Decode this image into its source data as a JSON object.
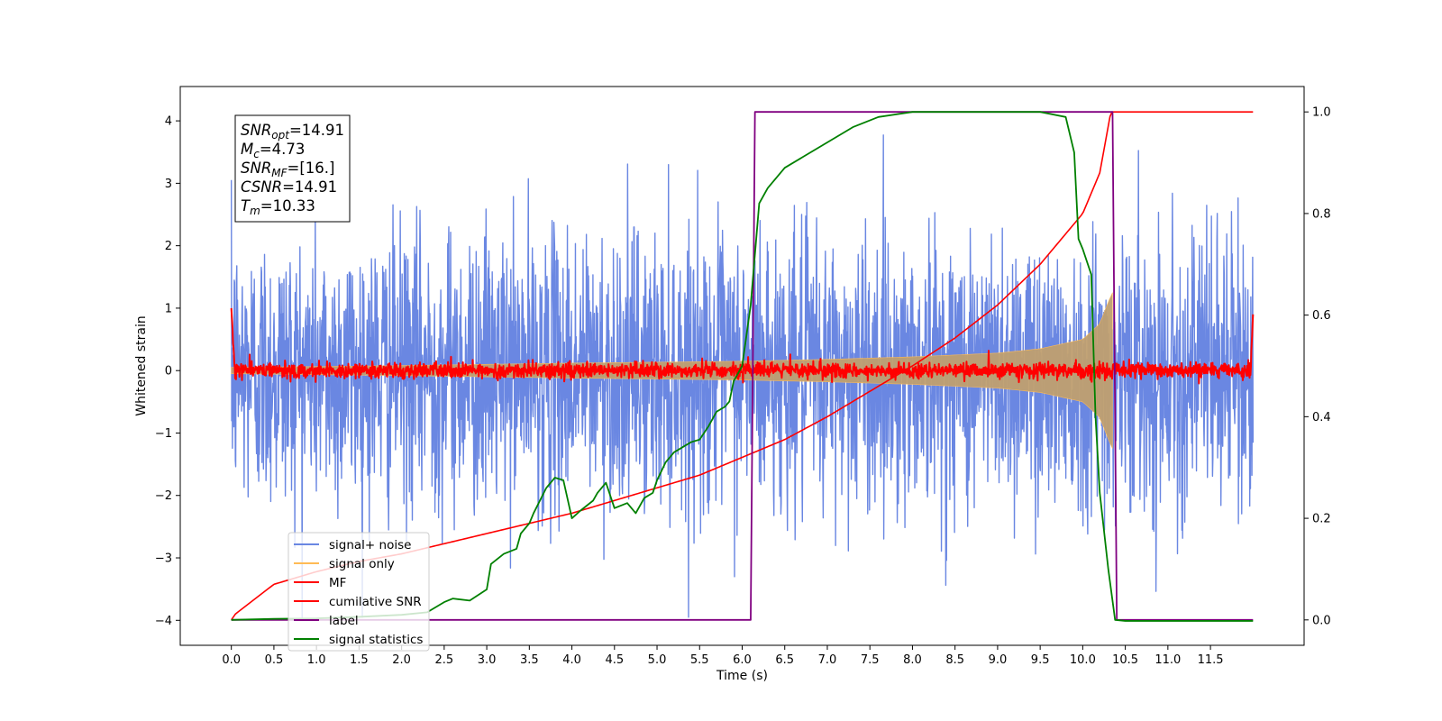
{
  "chart_data": {
    "type": "line",
    "xlabel": "Time (s)",
    "ylabel": "Whitened strain",
    "xlim": [
      -0.6,
      12.6
    ],
    "ylim_left": [
      -4.4,
      4.55
    ],
    "ylim_right": [
      -0.05,
      1.05
    ],
    "x_ticks": [
      0.0,
      0.5,
      1.0,
      1.5,
      2.0,
      2.5,
      3.0,
      3.5,
      4.0,
      4.5,
      5.0,
      5.5,
      6.0,
      6.5,
      7.0,
      7.5,
      8.0,
      8.5,
      9.0,
      9.5,
      10.0,
      10.5,
      11.0,
      11.5
    ],
    "x_tick_labels": [
      "0.0",
      "0.5",
      "1.0",
      "1.5",
      "2.0",
      "2.5",
      "3.0",
      "3.5",
      "4.0",
      "4.5",
      "5.0",
      "5.5",
      "6.0",
      "6.5",
      "7.0",
      "7.5",
      "8.0",
      "8.5",
      "9.0",
      "9.5",
      "10.0",
      "10.5",
      "11.0",
      "11.5"
    ],
    "y_left_ticks": [
      -4,
      -3,
      -2,
      -1,
      0,
      1,
      2,
      3,
      4
    ],
    "y_left_tick_labels": [
      "−4",
      "−3",
      "−2",
      "−1",
      "0",
      "1",
      "2",
      "3",
      "4"
    ],
    "y_right_ticks": [
      0.0,
      0.2,
      0.4,
      0.6,
      0.8,
      1.0
    ],
    "y_right_tick_labels": [
      "0.0",
      "0.2",
      "0.4",
      "0.6",
      "0.8",
      "1.0"
    ],
    "legend_position": "lower-left",
    "series": [
      {
        "name": "signal+ noise",
        "color": "#6a87e2",
        "axis": "left",
        "x_range": [
          0,
          12
        ],
        "noise_std": 1.1
      },
      {
        "name": "signal only",
        "color": "#ffbb55",
        "fill_color": "#c0a070",
        "axis": "left",
        "x_range": [
          0,
          10.35
        ],
        "envelope": {
          "x": [
            0,
            2,
            4,
            6,
            7,
            8,
            9,
            9.5,
            10.0,
            10.2,
            10.3,
            10.35
          ],
          "y": [
            0.05,
            0.08,
            0.12,
            0.15,
            0.18,
            0.22,
            0.28,
            0.35,
            0.5,
            0.75,
            1.1,
            1.25
          ]
        }
      },
      {
        "name": "MF",
        "color": "#ff0000",
        "axis": "left",
        "x_range": [
          0,
          12
        ],
        "noise_std": 0.06,
        "edge_values": {
          "start": 1.0,
          "end": 0.9
        }
      },
      {
        "name": "cumilative SNR",
        "color": "#ff0000",
        "axis": "right",
        "x": [
          0,
          0.05,
          0.5,
          1,
          1.5,
          2,
          2.5,
          3,
          3.5,
          4,
          4.5,
          5,
          5.5,
          6,
          6.5,
          7,
          7.5,
          8,
          8.5,
          9,
          9.5,
          10,
          10.2,
          10.33,
          12
        ],
        "y": [
          0.0,
          0.012,
          0.07,
          0.095,
          0.115,
          0.13,
          0.15,
          0.17,
          0.19,
          0.21,
          0.235,
          0.26,
          0.285,
          0.32,
          0.355,
          0.4,
          0.45,
          0.5,
          0.555,
          0.62,
          0.7,
          0.8,
          0.88,
          1.0,
          1.0
        ]
      },
      {
        "name": "label",
        "color": "#800080",
        "axis": "right",
        "x": [
          0,
          6.1,
          6.15,
          10.35,
          10.4,
          12
        ],
        "y": [
          0,
          0,
          1,
          1,
          0,
          0
        ]
      },
      {
        "name": "signal statistics",
        "color": "#008000",
        "axis": "right",
        "x": [
          0,
          0.5,
          1,
          1.5,
          2,
          2.3,
          2.5,
          2.6,
          2.8,
          3.0,
          3.05,
          3.2,
          3.35,
          3.4,
          3.5,
          3.55,
          3.7,
          3.8,
          3.9,
          4.0,
          4.1,
          4.25,
          4.3,
          4.4,
          4.5,
          4.65,
          4.75,
          4.85,
          4.95,
          5.0,
          5.1,
          5.2,
          5.3,
          5.4,
          5.5,
          5.6,
          5.7,
          5.8,
          5.85,
          5.9,
          6.0,
          6.1,
          6.2,
          6.3,
          6.5,
          6.7,
          7.0,
          7.3,
          7.6,
          8.0,
          8.5,
          9.0,
          9.5,
          9.8,
          9.9,
          9.95,
          10.0,
          10.1,
          10.15,
          10.2,
          10.3,
          10.38,
          10.5,
          12
        ],
        "y": [
          0.0,
          0.002,
          0.003,
          0.006,
          0.01,
          0.015,
          0.035,
          0.042,
          0.038,
          0.06,
          0.11,
          0.13,
          0.14,
          0.17,
          0.19,
          0.21,
          0.26,
          0.28,
          0.275,
          0.2,
          0.215,
          0.235,
          0.25,
          0.27,
          0.22,
          0.23,
          0.21,
          0.24,
          0.25,
          0.275,
          0.31,
          0.33,
          0.34,
          0.35,
          0.355,
          0.38,
          0.41,
          0.42,
          0.43,
          0.47,
          0.5,
          0.62,
          0.82,
          0.85,
          0.89,
          0.91,
          0.94,
          0.97,
          0.99,
          1.0,
          1.0,
          1.0,
          1.0,
          0.99,
          0.92,
          0.75,
          0.73,
          0.68,
          0.4,
          0.25,
          0.1,
          0.0,
          -0.002,
          -0.002
        ]
      }
    ],
    "annotation_box": {
      "lines": [
        {
          "sym": "SNR",
          "sub": "opt",
          "val": "=14.91"
        },
        {
          "sym": "M",
          "sub": "c",
          "val": "=4.73"
        },
        {
          "sym": "SNR",
          "sub": "MF",
          "val": "=[16.]"
        },
        {
          "sym": "CSNR",
          "sub": "",
          "val": "=14.91"
        },
        {
          "sym": "T",
          "sub": "m",
          "val": "=10.33"
        }
      ]
    }
  }
}
